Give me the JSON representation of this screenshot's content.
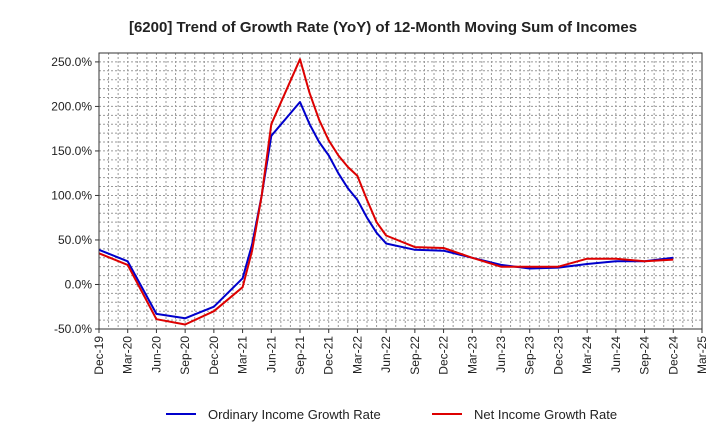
{
  "chart_data": {
    "type": "line",
    "title": "[6200]  Trend of Growth Rate (YoY) of 12-Month Moving Sum of Incomes",
    "xlabel": "",
    "ylabel": "",
    "ylim": [
      -50,
      260
    ],
    "yticks": [
      -50,
      0,
      50,
      100,
      150,
      200,
      250
    ],
    "ytick_labels": [
      "-50.0%",
      "0.0%",
      "50.0%",
      "100.0%",
      "150.0%",
      "200.0%",
      "250.0%"
    ],
    "x_range": [
      0,
      63
    ],
    "xticks": [
      0,
      3,
      6,
      9,
      12,
      15,
      18,
      21,
      24,
      27,
      30,
      33,
      36,
      39,
      42,
      45,
      48,
      51,
      54,
      57,
      60,
      63
    ],
    "xtick_labels": [
      "Dec-19",
      "Mar-20",
      "Jun-20",
      "Sep-20",
      "Dec-20",
      "Mar-21",
      "Jun-21",
      "Sep-21",
      "Dec-21",
      "Mar-22",
      "Jun-22",
      "Sep-22",
      "Dec-22",
      "Mar-23",
      "Jun-23",
      "Sep-23",
      "Dec-23",
      "Mar-24",
      "Jun-24",
      "Sep-24",
      "Dec-24",
      "Mar-25"
    ],
    "grid": true,
    "legend_position": "bottom",
    "series": [
      {
        "name": "Ordinary Income Growth Rate",
        "color": "#0000cc",
        "x": [
          0,
          3,
          6,
          9,
          12,
          15,
          16,
          17,
          18,
          21,
          22,
          23,
          24,
          25,
          26,
          27,
          28,
          29,
          30,
          33,
          36,
          39,
          42,
          45,
          48,
          51,
          54,
          57,
          60
        ],
        "values": [
          39,
          26,
          -33,
          -38,
          -25,
          7,
          45,
          100,
          167,
          205,
          180,
          160,
          145,
          125,
          108,
          95,
          75,
          58,
          46,
          39,
          38,
          30,
          22,
          18,
          19,
          23,
          26,
          26,
          30
        ]
      },
      {
        "name": "Net Income Growth Rate",
        "color": "#dd0000",
        "x": [
          0,
          3,
          6,
          9,
          12,
          15,
          16,
          17,
          18,
          21,
          22,
          23,
          24,
          25,
          26,
          27,
          28,
          29,
          30,
          33,
          36,
          39,
          42,
          45,
          48,
          51,
          54,
          57,
          60
        ],
        "values": [
          35,
          22,
          -39,
          -45,
          -30,
          -3,
          38,
          100,
          180,
          253,
          215,
          185,
          162,
          145,
          132,
          122,
          95,
          70,
          55,
          42,
          41,
          30,
          20,
          20,
          20,
          29,
          29,
          26,
          28
        ]
      }
    ]
  }
}
